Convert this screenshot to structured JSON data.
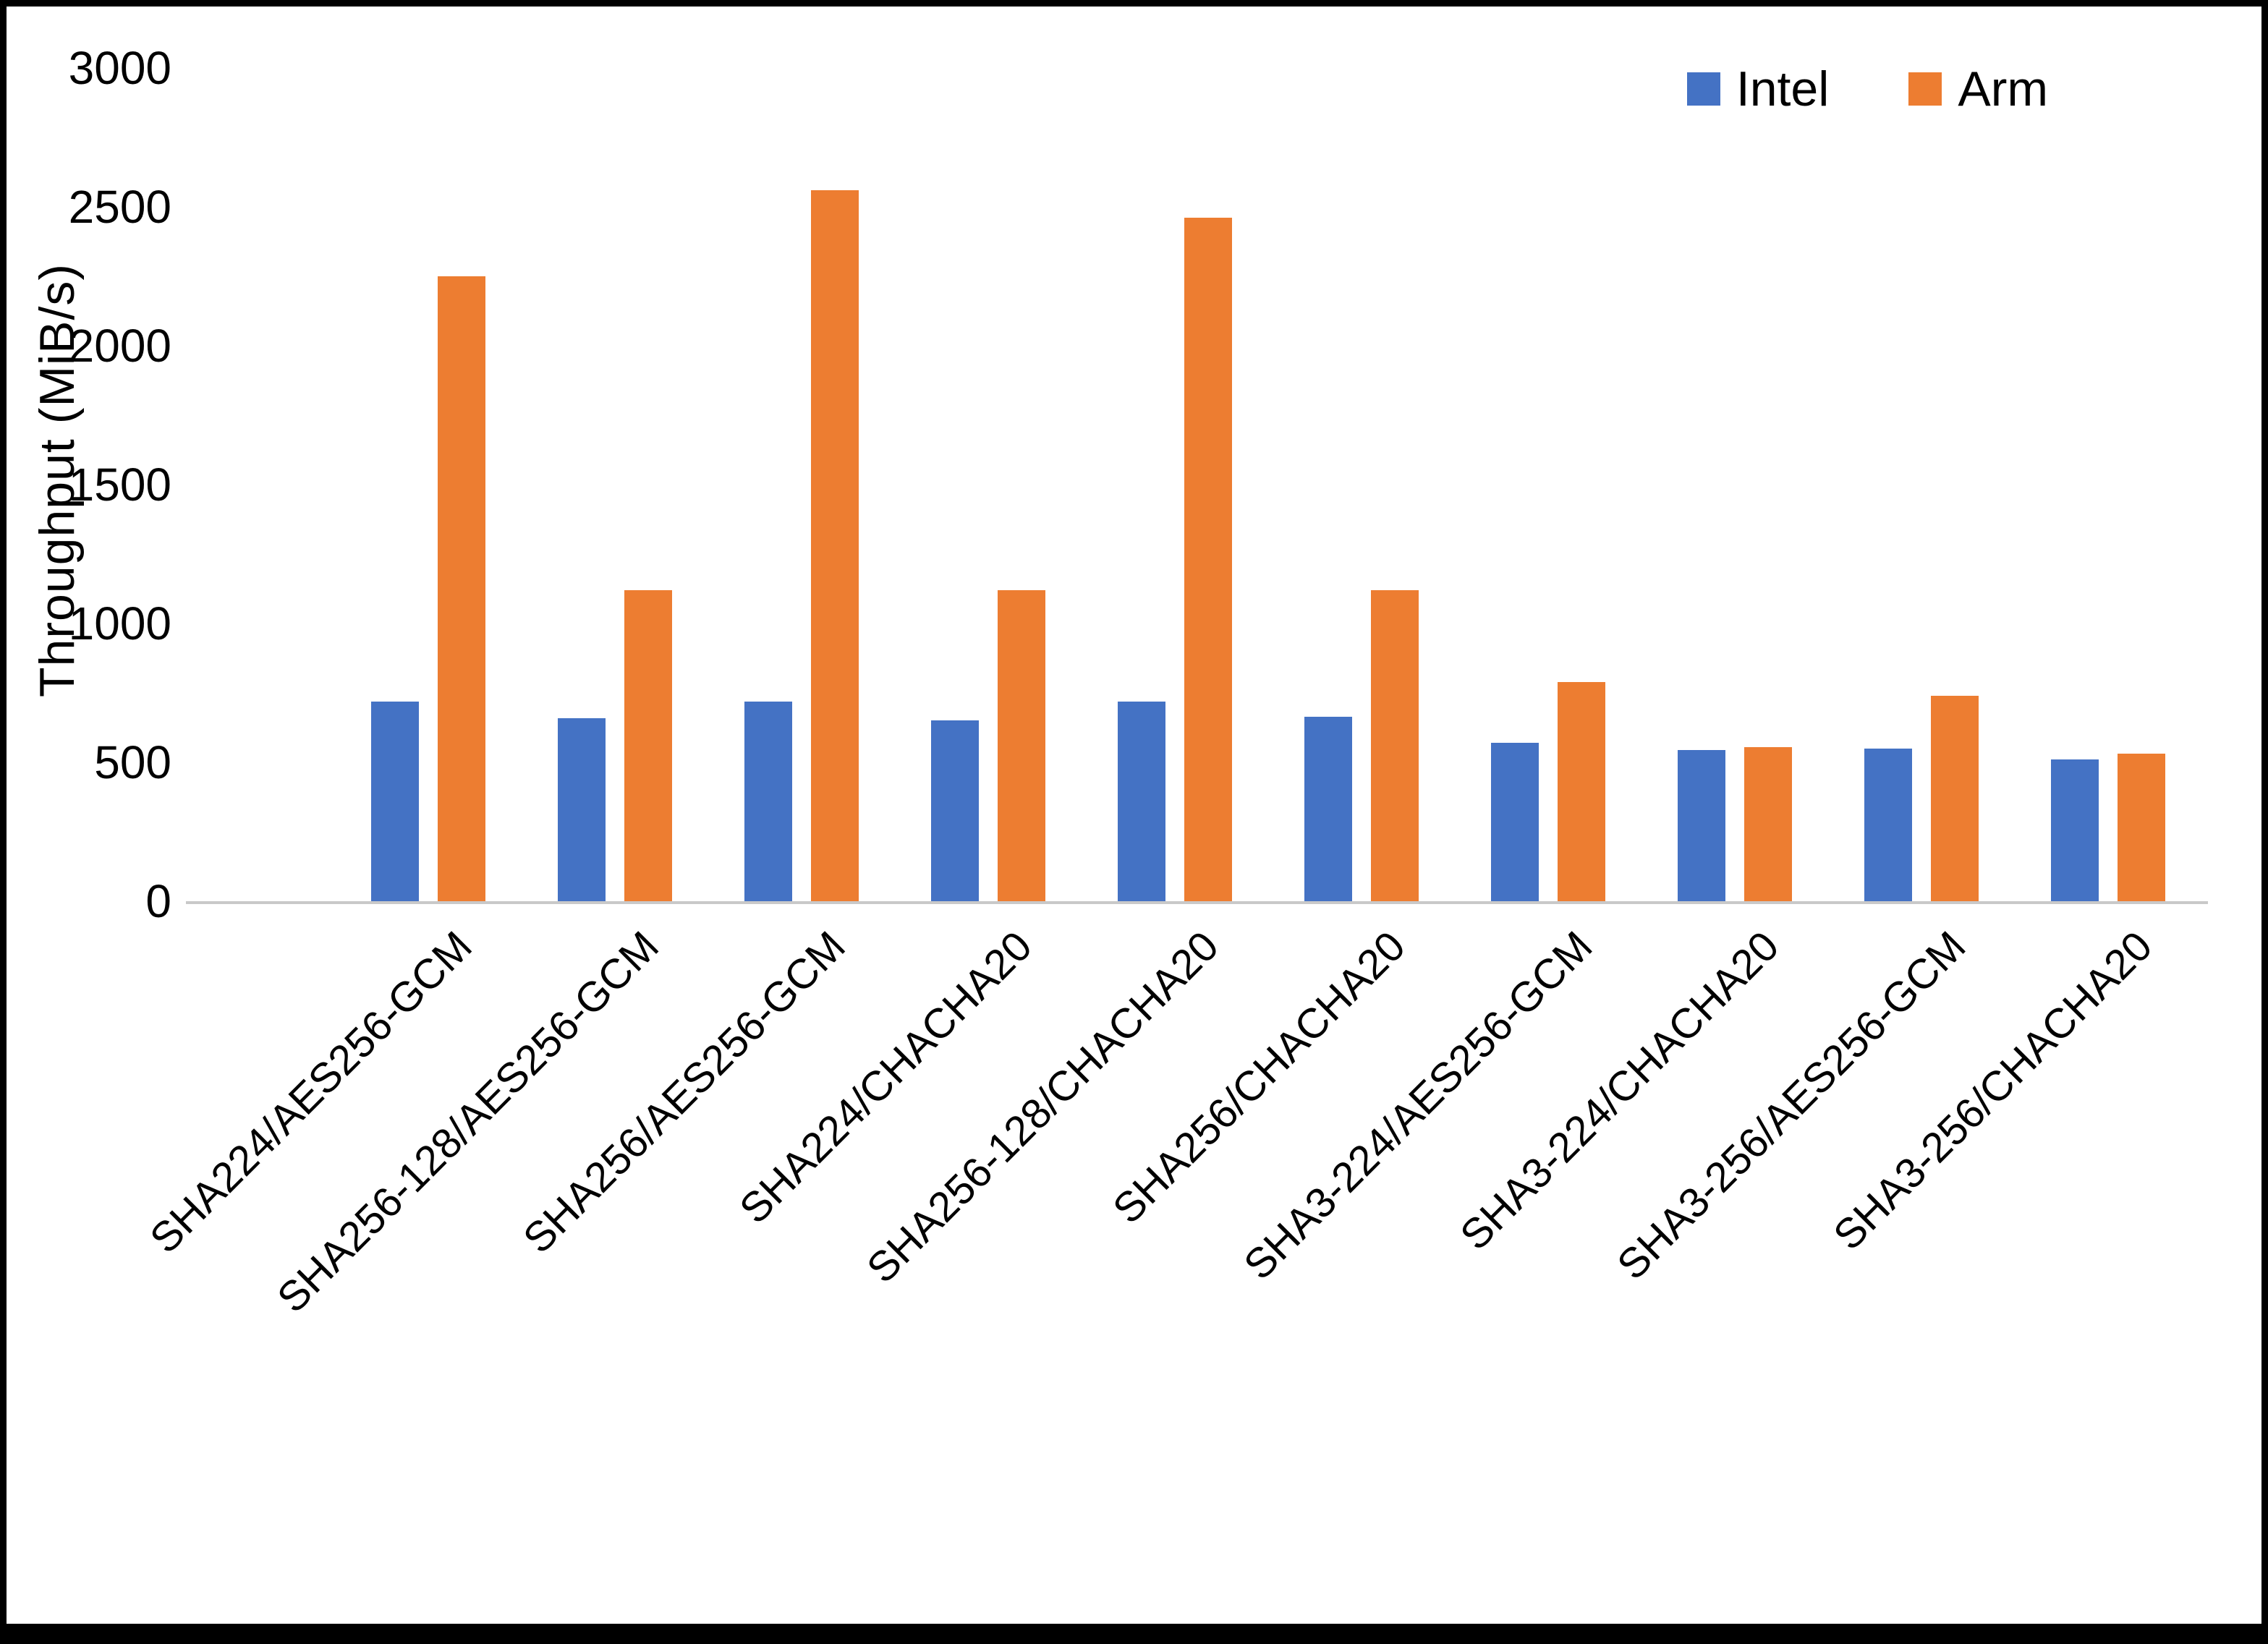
{
  "chart_data": {
    "type": "bar",
    "title": "",
    "xlabel": "",
    "ylabel": "Throughput (MiB/s)",
    "ylim": [
      0,
      3000
    ],
    "yticks": [
      0,
      500,
      1000,
      1500,
      2000,
      2500,
      3000
    ],
    "grid": false,
    "legend_position": "top-right",
    "categories": [
      "SHA224/AES256-GCM",
      "SHA256-128/AES256-GCM",
      "SHA256/AES256-GCM",
      "SHA224/CHACHA20",
      "SHA256-128/CHACHA20",
      "SHA256/CHACHA20",
      "SHA3-224/AES256-GCM",
      "SHA3-224/CHACHA20",
      "SHA3-256/AES256-GCM",
      "SHA3-256/CHACHA20"
    ],
    "series": [
      {
        "name": "Intel",
        "color": "#4472C4",
        "values": [
          720,
          660,
          720,
          650,
          720,
          665,
          570,
          545,
          550,
          510
        ]
      },
      {
        "name": "Arm",
        "color": "#ED7D31",
        "values": [
          2250,
          1120,
          2560,
          1120,
          2460,
          1120,
          790,
          555,
          740,
          530
        ]
      }
    ]
  }
}
